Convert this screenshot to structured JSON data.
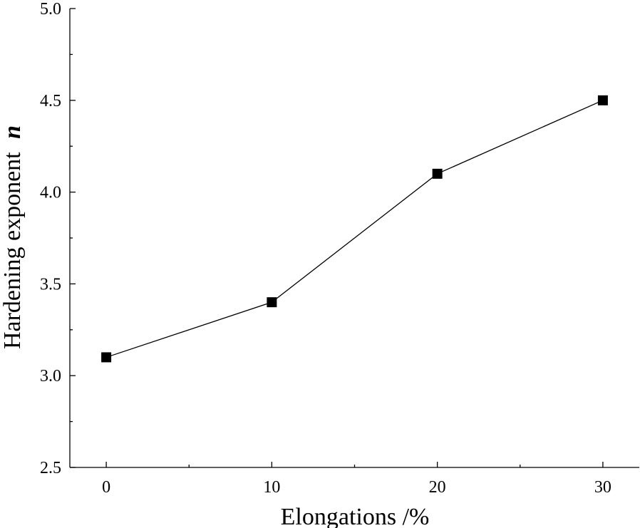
{
  "chart_data": {
    "type": "line",
    "title": "",
    "xlabel": "Elongations /%",
    "ylabel": "Hardening exponent",
    "ylabel_symbol": "n",
    "x": [
      0,
      10,
      20,
      30
    ],
    "series": [
      {
        "values": [
          3.1,
          3.4,
          4.1,
          4.5
        ],
        "marker": "square",
        "color": "#000000"
      }
    ],
    "xlim": [
      -2.2,
      32.2
    ],
    "ylim": [
      2.5,
      5.0
    ],
    "x_ticks": [
      "0",
      "10",
      "20",
      "30"
    ],
    "y_ticks": [
      "2.5",
      "3.0",
      "3.5",
      "4.0",
      "4.5",
      "5.0"
    ],
    "grid": false
  }
}
